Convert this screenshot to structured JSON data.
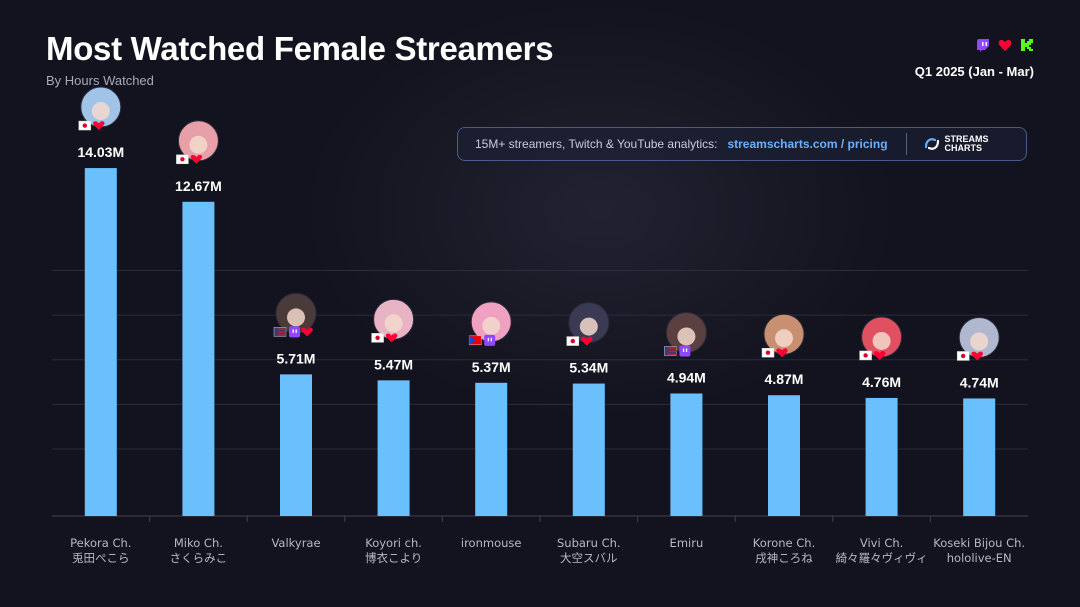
{
  "header": {
    "title": "Most Watched Female Streamers",
    "subtitle": "By Hours Watched",
    "period": "Q1 2025 (Jan - Mar)",
    "platform_icons": [
      "twitch-icon",
      "youtube-heart-icon",
      "kick-icon"
    ]
  },
  "promo": {
    "text": "15M+ streamers, Twitch & YouTube analytics:",
    "link": "streamscharts.com / pricing",
    "logo_line1": "STREAMS",
    "logo_line2": "CHARTS"
  },
  "colors": {
    "bar": "#6ac0fc",
    "background": "#13131f",
    "twitch": "#9146ff",
    "youtube": "#ff0033",
    "kick": "#53fc18",
    "link": "#6ab0ff"
  },
  "chart_data": {
    "type": "bar",
    "title": "Most Watched Female Streamers",
    "subtitle": "By Hours Watched",
    "xlabel": "",
    "ylabel": "",
    "ylim": [
      0,
      15
    ],
    "grid": true,
    "categories": [
      [
        "Pekora Ch.",
        "兎田ぺこら"
      ],
      [
        "Miko Ch.",
        "さくらみこ"
      ],
      [
        "Valkyrae"
      ],
      [
        "Koyori ch.",
        "博衣こより"
      ],
      [
        "ironmouse"
      ],
      [
        "Subaru Ch.",
        "大空スバル"
      ],
      [
        "Emiru"
      ],
      [
        "Korone Ch.",
        "戌神ころね"
      ],
      [
        "Vivi Ch.",
        "綺々羅々ヴィヴィ"
      ],
      [
        "Koseki Bijou Ch.",
        "hololive-EN"
      ]
    ],
    "values": [
      14.03,
      12.67,
      5.71,
      5.47,
      5.37,
      5.34,
      4.94,
      4.87,
      4.76,
      4.74
    ],
    "value_labels": [
      "14.03M",
      "12.67M",
      "5.71M",
      "5.47M",
      "5.37M",
      "5.34M",
      "4.94M",
      "4.87M",
      "4.76M",
      "4.74M"
    ],
    "countries": [
      "jp",
      "jp",
      "us",
      "jp",
      "pr",
      "jp",
      "us",
      "jp",
      "jp",
      "jp"
    ],
    "platforms": [
      [
        "youtube"
      ],
      [
        "youtube"
      ],
      [
        "twitch",
        "youtube"
      ],
      [
        "youtube"
      ],
      [
        "twitch"
      ],
      [
        "youtube"
      ],
      [
        "twitch"
      ],
      [
        "youtube"
      ],
      [
        "youtube"
      ],
      [
        "youtube"
      ]
    ]
  }
}
